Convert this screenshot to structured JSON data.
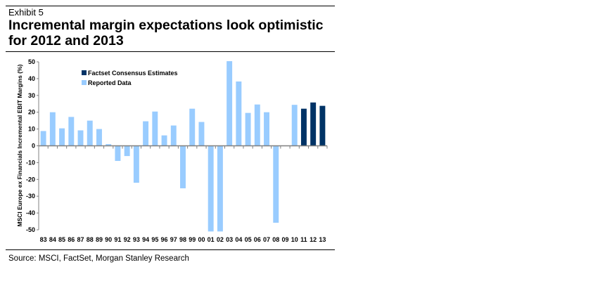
{
  "header": {
    "exhibit": "Exhibit 5",
    "title": "Incremental margin expectations look optimistic for 2012 and 2013"
  },
  "footer": {
    "source": "Source: MSCI, FactSet, Morgan Stanley Research"
  },
  "colors": {
    "estimates": "#003366",
    "reported": "#99ccff",
    "axis": "#808080"
  },
  "chart_data": {
    "type": "bar",
    "title": "Incremental margin expectations look optimistic for 2012 and 2013",
    "xlabel": "",
    "ylabel": "MSCI Europe ex Financials Incremental EBIT Margins (%)",
    "ylim": [
      -50,
      50
    ],
    "yticks": [
      50,
      40,
      30,
      20,
      10,
      0,
      -10,
      -20,
      -30,
      -40,
      -50
    ],
    "grid": false,
    "legend_position": "top-left",
    "categories": [
      "83",
      "84",
      "85",
      "86",
      "87",
      "88",
      "89",
      "90",
      "91",
      "92",
      "93",
      "94",
      "95",
      "96",
      "97",
      "98",
      "99",
      "00",
      "01",
      "02",
      "03",
      "04",
      "05",
      "06",
      "07",
      "08",
      "09",
      "10",
      "11",
      "12",
      "13"
    ],
    "series": [
      {
        "name": "Factset Consensus Estimates",
        "color": "#003366",
        "values": [
          null,
          null,
          null,
          null,
          null,
          null,
          null,
          null,
          null,
          null,
          null,
          null,
          null,
          null,
          null,
          null,
          null,
          null,
          null,
          null,
          null,
          null,
          null,
          null,
          null,
          null,
          null,
          null,
          22.1,
          25.8,
          23.8
        ]
      },
      {
        "name": "Reported Data",
        "color": "#99ccff",
        "values": [
          8.8,
          20.0,
          10.4,
          17.2,
          9.2,
          15.0,
          10.0,
          1.0,
          -9.0,
          -6.1,
          -22.0,
          14.6,
          20.4,
          6.2,
          12.1,
          -25.3,
          22.1,
          14.2,
          -51.0,
          -51.0,
          50.4,
          38.3,
          19.6,
          24.6,
          20.0,
          -45.8,
          0,
          24.4,
          null,
          null,
          null
        ]
      }
    ],
    "legend": [
      "Factset Consensus Estimates",
      "Reported Data"
    ]
  }
}
